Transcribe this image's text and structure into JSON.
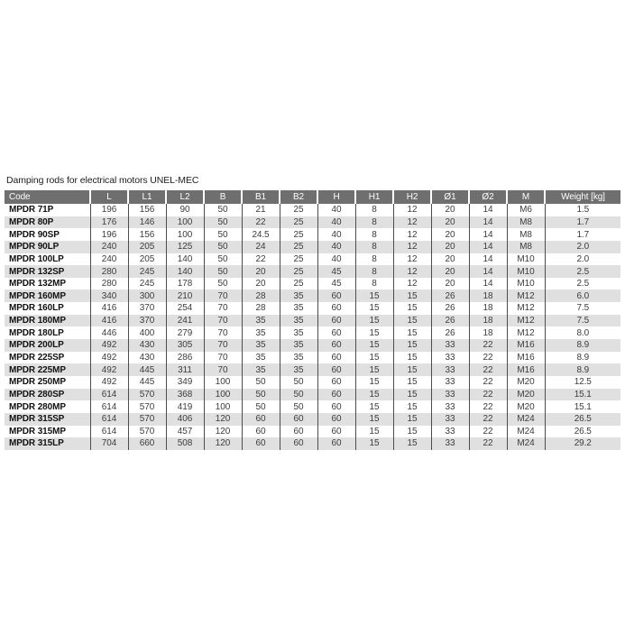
{
  "page": {
    "title": "Damping rods for electrical motors UNEL-MEC"
  },
  "colors": {
    "header_bg": "#6f6f6f",
    "header_text": "#ffffff",
    "row_alt_bg": "#e0e0e0",
    "row_bg": "#ffffff",
    "grid_line": "#4c4c4c",
    "body_text": "#3c3c3c",
    "code_text": "#111111"
  },
  "table": {
    "columns": [
      "Code",
      "L",
      "L1",
      "L2",
      "B",
      "B1",
      "B2",
      "H",
      "H1",
      "H2",
      "Ø1",
      "Ø2",
      "M",
      "Weight [kg]"
    ],
    "rows": [
      [
        "MPDR 71P",
        "196",
        "156",
        "90",
        "50",
        "21",
        "25",
        "40",
        "8",
        "12",
        "20",
        "14",
        "M6",
        "1.5"
      ],
      [
        "MPDR 80P",
        "176",
        "146",
        "100",
        "50",
        "22",
        "25",
        "40",
        "8",
        "12",
        "20",
        "14",
        "M8",
        "1.7"
      ],
      [
        "MPDR 90SP",
        "196",
        "156",
        "100",
        "50",
        "24.5",
        "25",
        "40",
        "8",
        "12",
        "20",
        "14",
        "M8",
        "1.7"
      ],
      [
        "MPDR 90LP",
        "240",
        "205",
        "125",
        "50",
        "24",
        "25",
        "40",
        "8",
        "12",
        "20",
        "14",
        "M8",
        "2.0"
      ],
      [
        "MPDR 100LP",
        "240",
        "205",
        "140",
        "50",
        "22",
        "25",
        "40",
        "8",
        "12",
        "20",
        "14",
        "M10",
        "2.0"
      ],
      [
        "MPDR 132SP",
        "280",
        "245",
        "140",
        "50",
        "20",
        "25",
        "45",
        "8",
        "12",
        "20",
        "14",
        "M10",
        "2.5"
      ],
      [
        "MPDR 132MP",
        "280",
        "245",
        "178",
        "50",
        "20",
        "25",
        "45",
        "8",
        "12",
        "20",
        "14",
        "M10",
        "2.5"
      ],
      [
        "MPDR 160MP",
        "340",
        "300",
        "210",
        "70",
        "28",
        "35",
        "60",
        "15",
        "15",
        "26",
        "18",
        "M12",
        "6.0"
      ],
      [
        "MPDR 160LP",
        "416",
        "370",
        "254",
        "70",
        "28",
        "35",
        "60",
        "15",
        "15",
        "26",
        "18",
        "M12",
        "7.5"
      ],
      [
        "MPDR 180MP",
        "416",
        "370",
        "241",
        "70",
        "35",
        "35",
        "60",
        "15",
        "15",
        "26",
        "18",
        "M12",
        "7.5"
      ],
      [
        "MPDR 180LP",
        "446",
        "400",
        "279",
        "70",
        "35",
        "35",
        "60",
        "15",
        "15",
        "26",
        "18",
        "M12",
        "8.0"
      ],
      [
        "MPDR 200LP",
        "492",
        "430",
        "305",
        "70",
        "35",
        "35",
        "60",
        "15",
        "15",
        "33",
        "22",
        "M16",
        "8.9"
      ],
      [
        "MPDR 225SP",
        "492",
        "430",
        "286",
        "70",
        "35",
        "35",
        "60",
        "15",
        "15",
        "33",
        "22",
        "M16",
        "8.9"
      ],
      [
        "MPDR 225MP",
        "492",
        "445",
        "311",
        "70",
        "35",
        "35",
        "60",
        "15",
        "15",
        "33",
        "22",
        "M16",
        "8.9"
      ],
      [
        "MPDR 250MP",
        "492",
        "445",
        "349",
        "100",
        "50",
        "50",
        "60",
        "15",
        "15",
        "33",
        "22",
        "M20",
        "12.5"
      ],
      [
        "MPDR 280SP",
        "614",
        "570",
        "368",
        "100",
        "50",
        "50",
        "60",
        "15",
        "15",
        "33",
        "22",
        "M20",
        "15.1"
      ],
      [
        "MPDR 280MP",
        "614",
        "570",
        "419",
        "100",
        "50",
        "50",
        "60",
        "15",
        "15",
        "33",
        "22",
        "M20",
        "15.1"
      ],
      [
        "MPDR 315SP",
        "614",
        "570",
        "406",
        "120",
        "60",
        "60",
        "60",
        "15",
        "15",
        "33",
        "22",
        "M24",
        "26.5"
      ],
      [
        "MPDR 315MP",
        "614",
        "570",
        "457",
        "120",
        "60",
        "60",
        "60",
        "15",
        "15",
        "33",
        "22",
        "M24",
        "26.5"
      ],
      [
        "MPDR 315LP",
        "704",
        "660",
        "508",
        "120",
        "60",
        "60",
        "60",
        "15",
        "15",
        "33",
        "22",
        "M24",
        "29.2"
      ]
    ]
  }
}
